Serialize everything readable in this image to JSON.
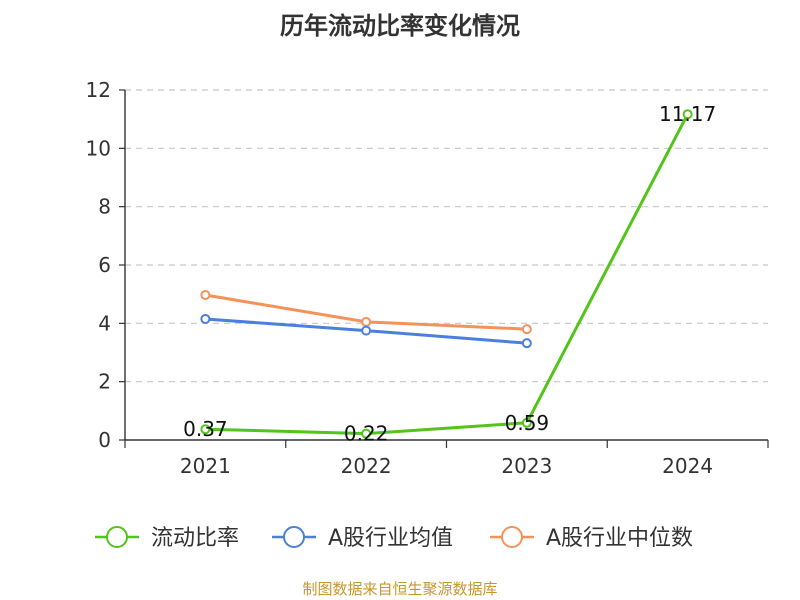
{
  "chart_data": {
    "type": "line",
    "title": "历年流动比率变化情况",
    "categories": [
      "2021",
      "2022",
      "2023",
      "2024"
    ],
    "ylim": [
      0,
      12
    ],
    "yticks": [
      0,
      2,
      4,
      6,
      8,
      10,
      12
    ],
    "grid": true,
    "legend_position": "bottom",
    "series": [
      {
        "name": "流动比率",
        "color": "#52c41a",
        "values": [
          0.37,
          0.22,
          0.59,
          11.17
        ],
        "labels": [
          "0.37",
          "0.22",
          "0.59",
          "11.17"
        ]
      },
      {
        "name": "A股行业均值",
        "color": "#4a7fdc",
        "values": [
          4.15,
          3.75,
          3.32,
          null
        ]
      },
      {
        "name": "A股行业中位数",
        "color": "#f5925a",
        "values": [
          4.97,
          4.05,
          3.8,
          null
        ]
      }
    ]
  },
  "source": "制图数据来自恒生聚源数据库"
}
